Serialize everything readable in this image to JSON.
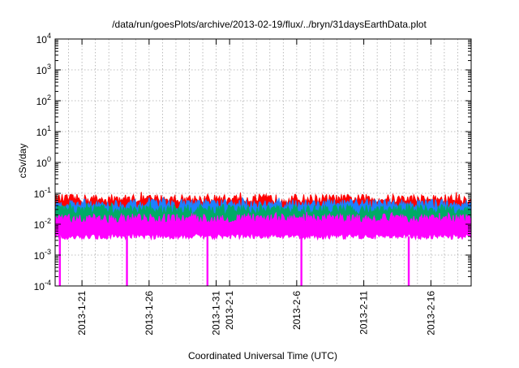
{
  "chart_data": {
    "type": "line",
    "title": "/data/run/goesPlots/archive/2013-02-19/flux/../bryn/31daysEarthData.plot",
    "xlabel": "Coordinated Universal Time (UTC)",
    "ylabel": "cSv/day",
    "yscale": "log",
    "ylim": [
      0.0001,
      10000
    ],
    "xlim": [
      "2013-01-19",
      "2013-02-19"
    ],
    "grid": true,
    "y_ticks": [
      {
        "base": "10",
        "exp": "-4"
      },
      {
        "base": "10",
        "exp": "-3"
      },
      {
        "base": "10",
        "exp": "-2"
      },
      {
        "base": "10",
        "exp": "-1"
      },
      {
        "base": "10",
        "exp": "0"
      },
      {
        "base": "10",
        "exp": "1"
      },
      {
        "base": "10",
        "exp": "2"
      },
      {
        "base": "10",
        "exp": "3"
      },
      {
        "base": "10",
        "exp": "4"
      }
    ],
    "x_ticks": [
      {
        "label": "2013-1-21",
        "date": "2013-01-21"
      },
      {
        "label": "2013-1-26",
        "date": "2013-01-26"
      },
      {
        "label": "2013-1-31",
        "date": "2013-01-31"
      },
      {
        "label": "2013-2-1",
        "date": "2013-02-01"
      },
      {
        "label": "2013-2-6",
        "date": "2013-02-06"
      },
      {
        "label": "2013-2-11",
        "date": "2013-02-11"
      },
      {
        "label": "2013-2-16",
        "date": "2013-02-16"
      }
    ],
    "series": [
      {
        "color": "#ff0000",
        "typical": 0.065,
        "max": 0.14
      },
      {
        "color": "#1f7fff",
        "typical": 0.045,
        "max": 0.09
      },
      {
        "color": "#00aa66",
        "typical": 0.03,
        "max": 0.06
      },
      {
        "color": "#ff00ff",
        "typical": 0.015,
        "max": 0.03,
        "min": 0.004
      }
    ],
    "dropouts": [
      "2013-01-19",
      "2013-01-24",
      "2013-01-30",
      "2013-02-06",
      "2013-02-14"
    ]
  }
}
